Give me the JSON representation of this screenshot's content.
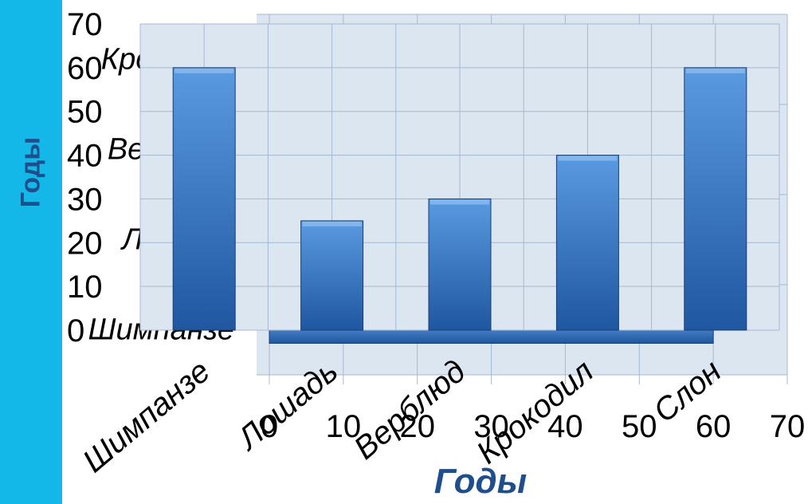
{
  "side_band": {
    "color": "#13b8e8",
    "label": "Годы"
  },
  "chart_data": [
    {
      "type": "bar",
      "orientation": "horizontal",
      "categories": [
        "Шимпанзе",
        "Лошадь",
        "Верблюд",
        "Крокодил"
      ],
      "values": [
        60,
        0,
        0,
        0
      ],
      "xlabel": "",
      "ylabel": "",
      "xlim": [
        0,
        70
      ],
      "xticks": [
        "0",
        "10",
        "20",
        "30",
        "40",
        "50",
        "60",
        "70"
      ],
      "grid": true
    },
    {
      "type": "bar",
      "orientation": "vertical",
      "categories": [
        "Шимпанзе",
        "Лошадь",
        "Верблюд",
        "Крокодил",
        "Слон"
      ],
      "values": [
        60,
        25,
        30,
        40,
        60
      ],
      "xlabel": "Годы",
      "ylabel": "Годы",
      "ylim": [
        0,
        70
      ],
      "yticks": [
        "0",
        "10",
        "20",
        "30",
        "40",
        "50",
        "60",
        "70"
      ],
      "grid": true
    }
  ],
  "colors": {
    "plot_background": "#dce6f1",
    "grid": "#a7b8cf",
    "bar_light": "#4f8fd8",
    "bar_dark": "#1f57a0",
    "title": "#1f4e8c"
  }
}
